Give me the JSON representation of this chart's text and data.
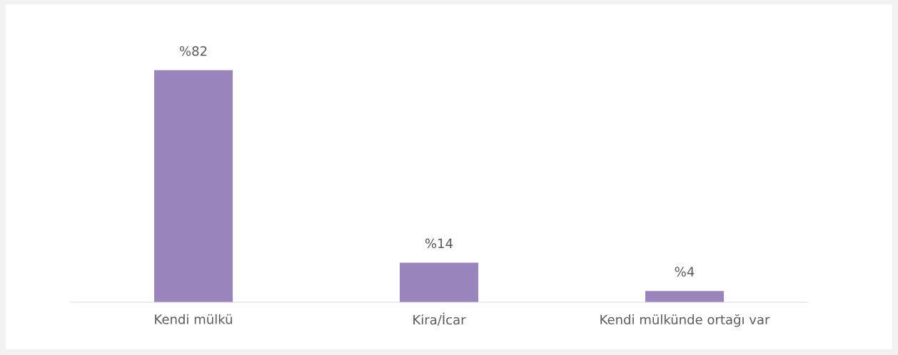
{
  "chart_data": {
    "type": "bar",
    "categories": [
      "Kendi mülkü",
      "Kira/İcar",
      "Kendi mülkünde ortağı var"
    ],
    "values": [
      82,
      14,
      4
    ],
    "value_labels": [
      "%82",
      "%14",
      "%4"
    ],
    "color": "#9985bb"
  }
}
